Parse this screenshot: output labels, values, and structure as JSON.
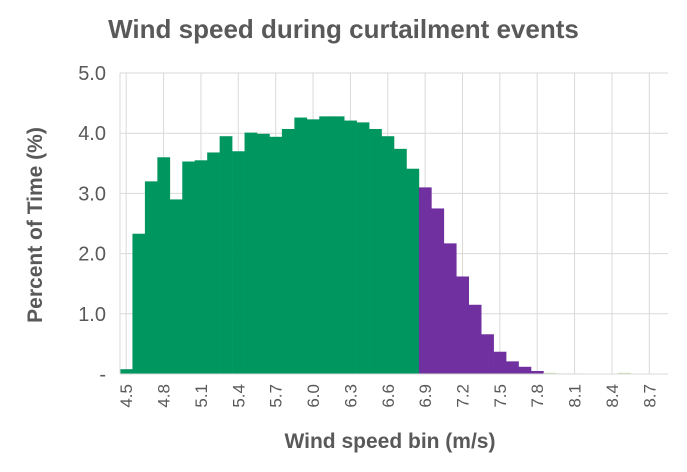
{
  "chart_data": {
    "type": "bar",
    "title": "Wind speed during curtailment events",
    "xlabel": "Wind speed bin (m/s)",
    "ylabel": "Percent of Time (%)",
    "ylim": [
      0,
      5
    ],
    "y_ticks": [
      "-",
      "1.0",
      "2.0",
      "3.0",
      "4.0",
      "5.0"
    ],
    "x_tick_labels": [
      "4.5",
      "4.8",
      "5.1",
      "5.4",
      "5.7",
      "6.0",
      "6.3",
      "6.6",
      "6.9",
      "7.2",
      "7.5",
      "7.8",
      "8.1",
      "8.4",
      "8.7"
    ],
    "grid": true,
    "categories": [
      "4.5",
      "4.6",
      "4.7",
      "4.8",
      "4.9",
      "5.0",
      "5.1",
      "5.2",
      "5.3",
      "5.4",
      "5.5",
      "5.6",
      "5.7",
      "5.8",
      "5.9",
      "6.0",
      "6.1",
      "6.2",
      "6.3",
      "6.4",
      "6.5",
      "6.6",
      "6.7",
      "6.8",
      "6.9",
      "7.0",
      "7.1",
      "7.2",
      "7.3",
      "7.4",
      "7.5",
      "7.6",
      "7.7",
      "7.8",
      "7.9",
      "8.0",
      "8.1",
      "8.2",
      "8.3",
      "8.4",
      "8.5",
      "8.6",
      "8.7",
      "8.8"
    ],
    "values": [
      0.08,
      2.33,
      3.2,
      3.6,
      2.9,
      3.53,
      3.55,
      3.68,
      3.95,
      3.7,
      4.01,
      3.99,
      3.94,
      4.07,
      4.26,
      4.23,
      4.28,
      4.28,
      4.21,
      4.18,
      4.07,
      3.95,
      3.74,
      3.41,
      3.1,
      2.75,
      2.17,
      1.62,
      1.15,
      0.66,
      0.37,
      0.21,
      0.12,
      0.05,
      0.02,
      0.01,
      0.01,
      0.0,
      0.0,
      0.0,
      0.02,
      0.0,
      0.0,
      0.0
    ],
    "bar_colors": {
      "below_threshold": "#00965F",
      "above_threshold": "#7030A0",
      "tail": "#C5E0B4"
    },
    "threshold_category": "6.9"
  }
}
